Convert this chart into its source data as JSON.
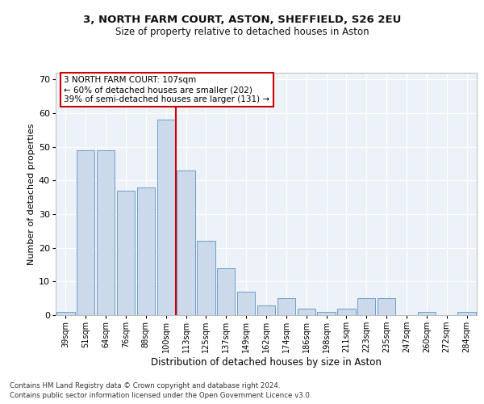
{
  "title1": "3, NORTH FARM COURT, ASTON, SHEFFIELD, S26 2EU",
  "title2": "Size of property relative to detached houses in Aston",
  "xlabel": "Distribution of detached houses by size in Aston",
  "ylabel": "Number of detached properties",
  "categories": [
    "39sqm",
    "51sqm",
    "64sqm",
    "76sqm",
    "88sqm",
    "100sqm",
    "113sqm",
    "125sqm",
    "137sqm",
    "149sqm",
    "162sqm",
    "174sqm",
    "186sqm",
    "198sqm",
    "211sqm",
    "223sqm",
    "235sqm",
    "247sqm",
    "260sqm",
    "272sqm",
    "284sqm"
  ],
  "values": [
    1,
    49,
    49,
    37,
    38,
    58,
    43,
    22,
    14,
    7,
    3,
    5,
    2,
    1,
    2,
    5,
    5,
    0,
    1,
    0,
    1
  ],
  "bar_color": "#ccd9ea",
  "bar_edge_color": "#6a9fc8",
  "vline_index": 5.5,
  "vline_color": "#cc0000",
  "annotation_text": "3 NORTH FARM COURT: 107sqm\n← 60% of detached houses are smaller (202)\n39% of semi-detached houses are larger (131) →",
  "box_color": "#cc0000",
  "ylim": [
    0,
    72
  ],
  "yticks": [
    0,
    10,
    20,
    30,
    40,
    50,
    60,
    70
  ],
  "footer1": "Contains HM Land Registry data © Crown copyright and database right 2024.",
  "footer2": "Contains public sector information licensed under the Open Government Licence v3.0.",
  "bg_color": "#edf2f9",
  "grid_color": "#ffffff"
}
